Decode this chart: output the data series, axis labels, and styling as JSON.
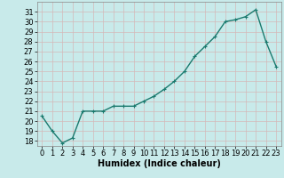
{
  "x": [
    0,
    1,
    2,
    3,
    4,
    5,
    6,
    7,
    8,
    9,
    10,
    11,
    12,
    13,
    14,
    15,
    16,
    17,
    18,
    19,
    20,
    21,
    22,
    23
  ],
  "y": [
    20.5,
    19.0,
    17.8,
    18.3,
    21.0,
    21.0,
    21.0,
    21.5,
    21.5,
    21.5,
    22.0,
    22.5,
    23.2,
    24.0,
    25.0,
    26.5,
    27.5,
    28.5,
    30.0,
    30.2,
    30.5,
    31.2,
    28.0,
    25.5
  ],
  "line_color": "#1a7a6e",
  "marker": "+",
  "marker_size": 3,
  "background_color": "#c8eaea",
  "grid_color": "#b8d8d8",
  "xlabel": "Humidex (Indice chaleur)",
  "xlabel_fontsize": 7,
  "ylim": [
    17.5,
    32
  ],
  "xlim": [
    -0.5,
    23.5
  ],
  "yticks": [
    18,
    19,
    20,
    21,
    22,
    23,
    24,
    25,
    26,
    27,
    28,
    29,
    30,
    31
  ],
  "xticks": [
    0,
    1,
    2,
    3,
    4,
    5,
    6,
    7,
    8,
    9,
    10,
    11,
    12,
    13,
    14,
    15,
    16,
    17,
    18,
    19,
    20,
    21,
    22,
    23
  ],
  "tick_fontsize": 6,
  "line_width": 1.0
}
